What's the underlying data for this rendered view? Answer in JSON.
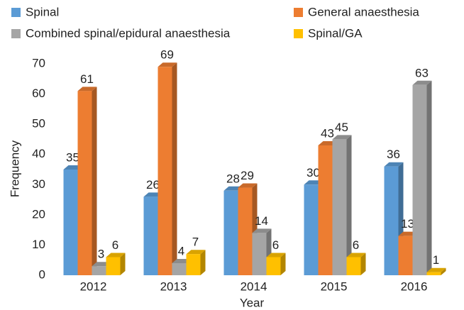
{
  "chart_data": {
    "type": "bar3d",
    "x_label": "Year",
    "y_label": "Frequency",
    "categories": [
      "2012",
      "2013",
      "2014",
      "2015",
      "2016"
    ],
    "series": [
      {
        "name": "Spinal",
        "color": "#5b9bd5",
        "values": [
          35,
          26,
          28,
          30,
          36
        ]
      },
      {
        "name": "General anaesthesia",
        "color": "#ed7d31",
        "values": [
          61,
          69,
          29,
          43,
          13
        ]
      },
      {
        "name": "Combined spinal/epidural anaesthesia",
        "color": "#a5a5a5",
        "values": [
          3,
          4,
          14,
          45,
          63
        ]
      },
      {
        "name": "Spinal/GA",
        "color": "#ffc000",
        "values": [
          6,
          7,
          6,
          6,
          1
        ]
      }
    ],
    "ylim": [
      0,
      70
    ],
    "yticks": [
      0,
      10,
      20,
      30,
      40,
      50,
      60,
      70
    ],
    "grid": false,
    "legend": "top",
    "data_labels": true
  }
}
